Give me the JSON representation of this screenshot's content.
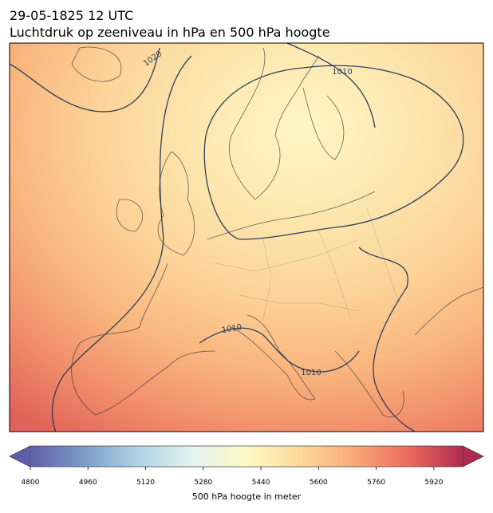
{
  "header": {
    "title": [
      "29-05-1825 12 UTC",
      "Luchtdruk op zeeniveau in hPa en 500 hPa hoogte"
    ]
  },
  "map": {
    "contour_labels": [
      "1020",
      "1010",
      "1010",
      "1010"
    ]
  },
  "colorbar": {
    "label": "500 hPa hoogte in meter",
    "range": [
      4800,
      6000
    ],
    "ticks": [
      4800,
      4960,
      5120,
      5280,
      5440,
      5600,
      5760,
      5920
    ],
    "colors": [
      "#5e5fa8",
      "#7b9dc9",
      "#aed4e6",
      "#e3f3f0",
      "#fefac4",
      "#fdd99a",
      "#f9a876",
      "#ec6b5e",
      "#b12a50"
    ]
  }
}
